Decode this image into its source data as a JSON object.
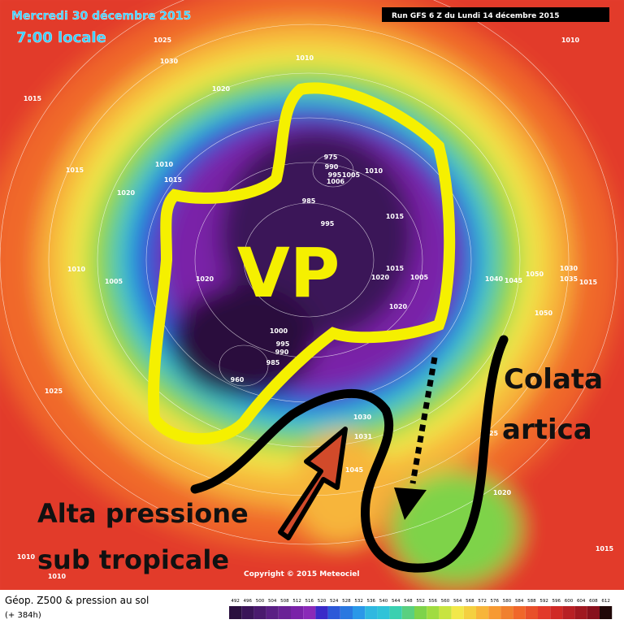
{
  "header": {
    "date": "Mercredi 30 décembre 2015",
    "time": "7:00 locale",
    "run": "Run GFS 6 Z du Lundi 14 décembre 2015"
  },
  "annotations": {
    "vortex": "VP",
    "cold_1": "Colata",
    "cold_2": "artica",
    "high_1": "Alta pressione",
    "high_2": "sub tropicale"
  },
  "pressure_labels": [
    "1025",
    "1030",
    "1010",
    "1015",
    "1020",
    "1010",
    "1015",
    "1020",
    "1010",
    "1015",
    "975",
    "990",
    "995",
    "1005",
    "1010",
    "1006",
    "985",
    "995",
    "1015",
    "1010",
    "1005",
    "1020",
    "1015",
    "1020",
    "1005",
    "1040",
    "1045",
    "1050",
    "1030",
    "1035",
    "1015",
    "1020",
    "1050",
    "1000",
    "995",
    "990",
    "985",
    "960",
    "1025",
    "1030",
    "1031",
    "1045",
    "1020",
    "1015",
    "1010",
    "1010",
    "1025"
  ],
  "copyright": "Copyright © 2015 Meteociel",
  "legend": {
    "title": "Géop. Z500 & pression au sol",
    "lead": "(+ 384h)",
    "scale": [
      492,
      496,
      500,
      504,
      508,
      512,
      516,
      520,
      524,
      528,
      532,
      536,
      540,
      544,
      548,
      552,
      556,
      560,
      564,
      568,
      572,
      576,
      580,
      584,
      588,
      592,
      596,
      600,
      604,
      608,
      612
    ]
  }
}
